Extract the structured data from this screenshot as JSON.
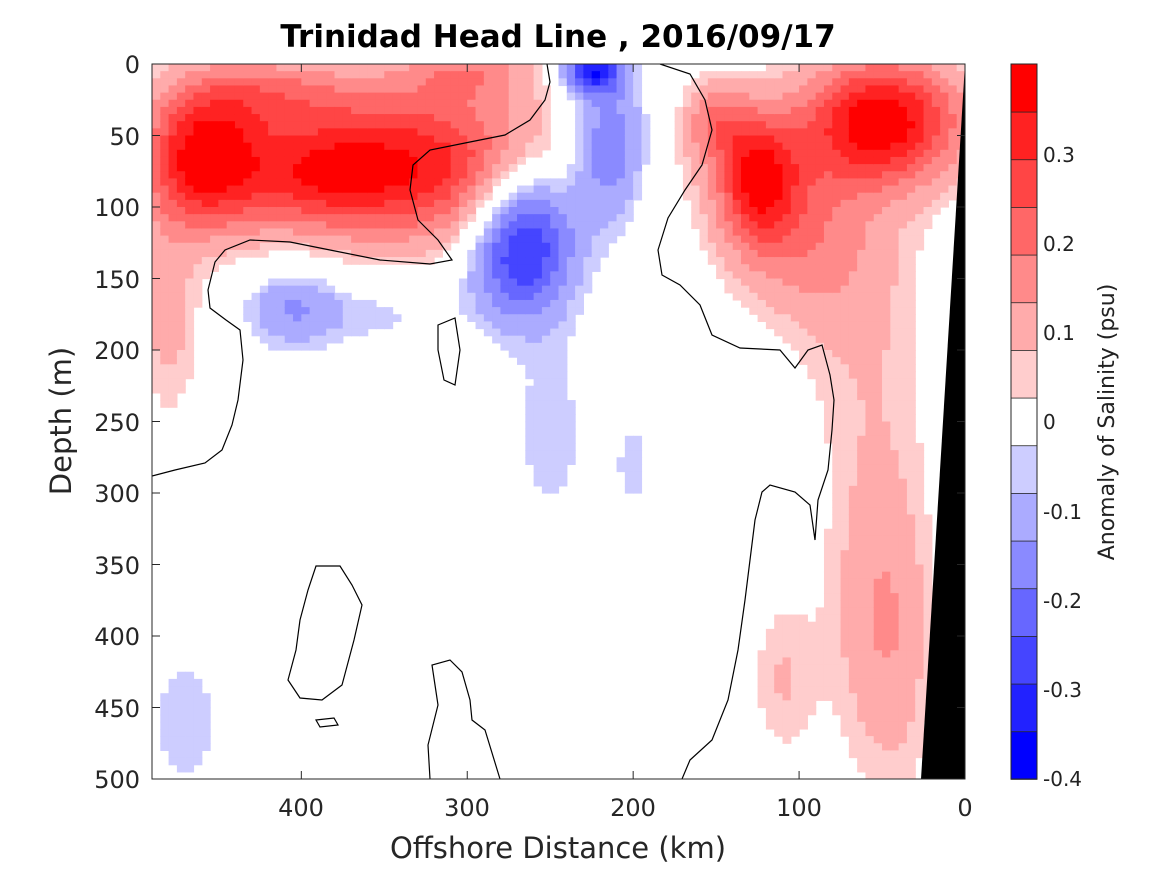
{
  "chart_data": {
    "type": "heatmap",
    "title": "Trinidad Head Line , 2016/09/17",
    "xlabel": "Offshore Distance (km)",
    "ylabel": "Depth (m)",
    "xlim": [
      490,
      0
    ],
    "ylim": [
      0,
      500
    ],
    "x_reversed": true,
    "y_reversed": true,
    "xticks": [
      "400",
      "300",
      "200",
      "100",
      "0"
    ],
    "xtick_values": [
      400,
      300,
      200,
      100,
      0
    ],
    "yticks": [
      "0",
      "50",
      "100",
      "150",
      "200",
      "250",
      "300",
      "350",
      "400",
      "450",
      "500"
    ],
    "ytick_values": [
      0,
      50,
      100,
      150,
      200,
      250,
      300,
      350,
      400,
      450,
      500
    ],
    "colorbar": {
      "label": "Anomaly of Salinity (psu)",
      "range": [
        -0.4,
        0.4
      ],
      "ticks": [
        "0.3",
        "0.2",
        "0.1",
        "0",
        "-0.1",
        "-0.2",
        "-0.3",
        "-0.4"
      ],
      "tick_values": [
        0.3,
        0.2,
        0.1,
        0,
        -0.1,
        -0.2,
        -0.3,
        -0.4
      ],
      "levels": [
        -0.4,
        -0.35,
        -0.3,
        -0.25,
        -0.2,
        -0.15,
        -0.1,
        -0.05,
        0.05,
        0.1,
        0.15,
        0.2,
        0.25,
        0.3,
        0.35
      ],
      "colors": [
        "#0000ff",
        "#2222ff",
        "#4545ff",
        "#6767ff",
        "#8a8aff",
        "#ababff",
        "#cdcdff",
        "#ffffff",
        "#ffcdcd",
        "#ffabab",
        "#ff8a8a",
        "#ff6767",
        "#ff4545",
        "#ff2222",
        "#ff0000"
      ]
    },
    "land_color": "#000000",
    "contour_line": "0 psu anomaly contour (black)",
    "features": [
      {
        "name": "positive anomaly offshore surface",
        "x_range": [
          490,
          260
        ],
        "depth_range": [
          0,
          160
        ],
        "peak": 0.35
      },
      {
        "name": "negative anomaly core",
        "x": 265,
        "depth": 115,
        "peak": -0.3
      },
      {
        "name": "surface negative anomaly",
        "x": 225,
        "depth": 5,
        "peak": -0.3
      },
      {
        "name": "positive anomaly nearshore surface",
        "x_range": [
          160,
          10
        ],
        "depth_range": [
          0,
          120
        ],
        "peak": 0.4
      },
      {
        "name": "weak negative anomaly",
        "x": 405,
        "depth": 170,
        "peak": -0.15
      },
      {
        "name": "weak positive anomaly nearshore deep",
        "x_range": [
          130,
          30
        ],
        "depth_range": [
          300,
          500
        ],
        "peak": 0.1
      }
    ]
  }
}
